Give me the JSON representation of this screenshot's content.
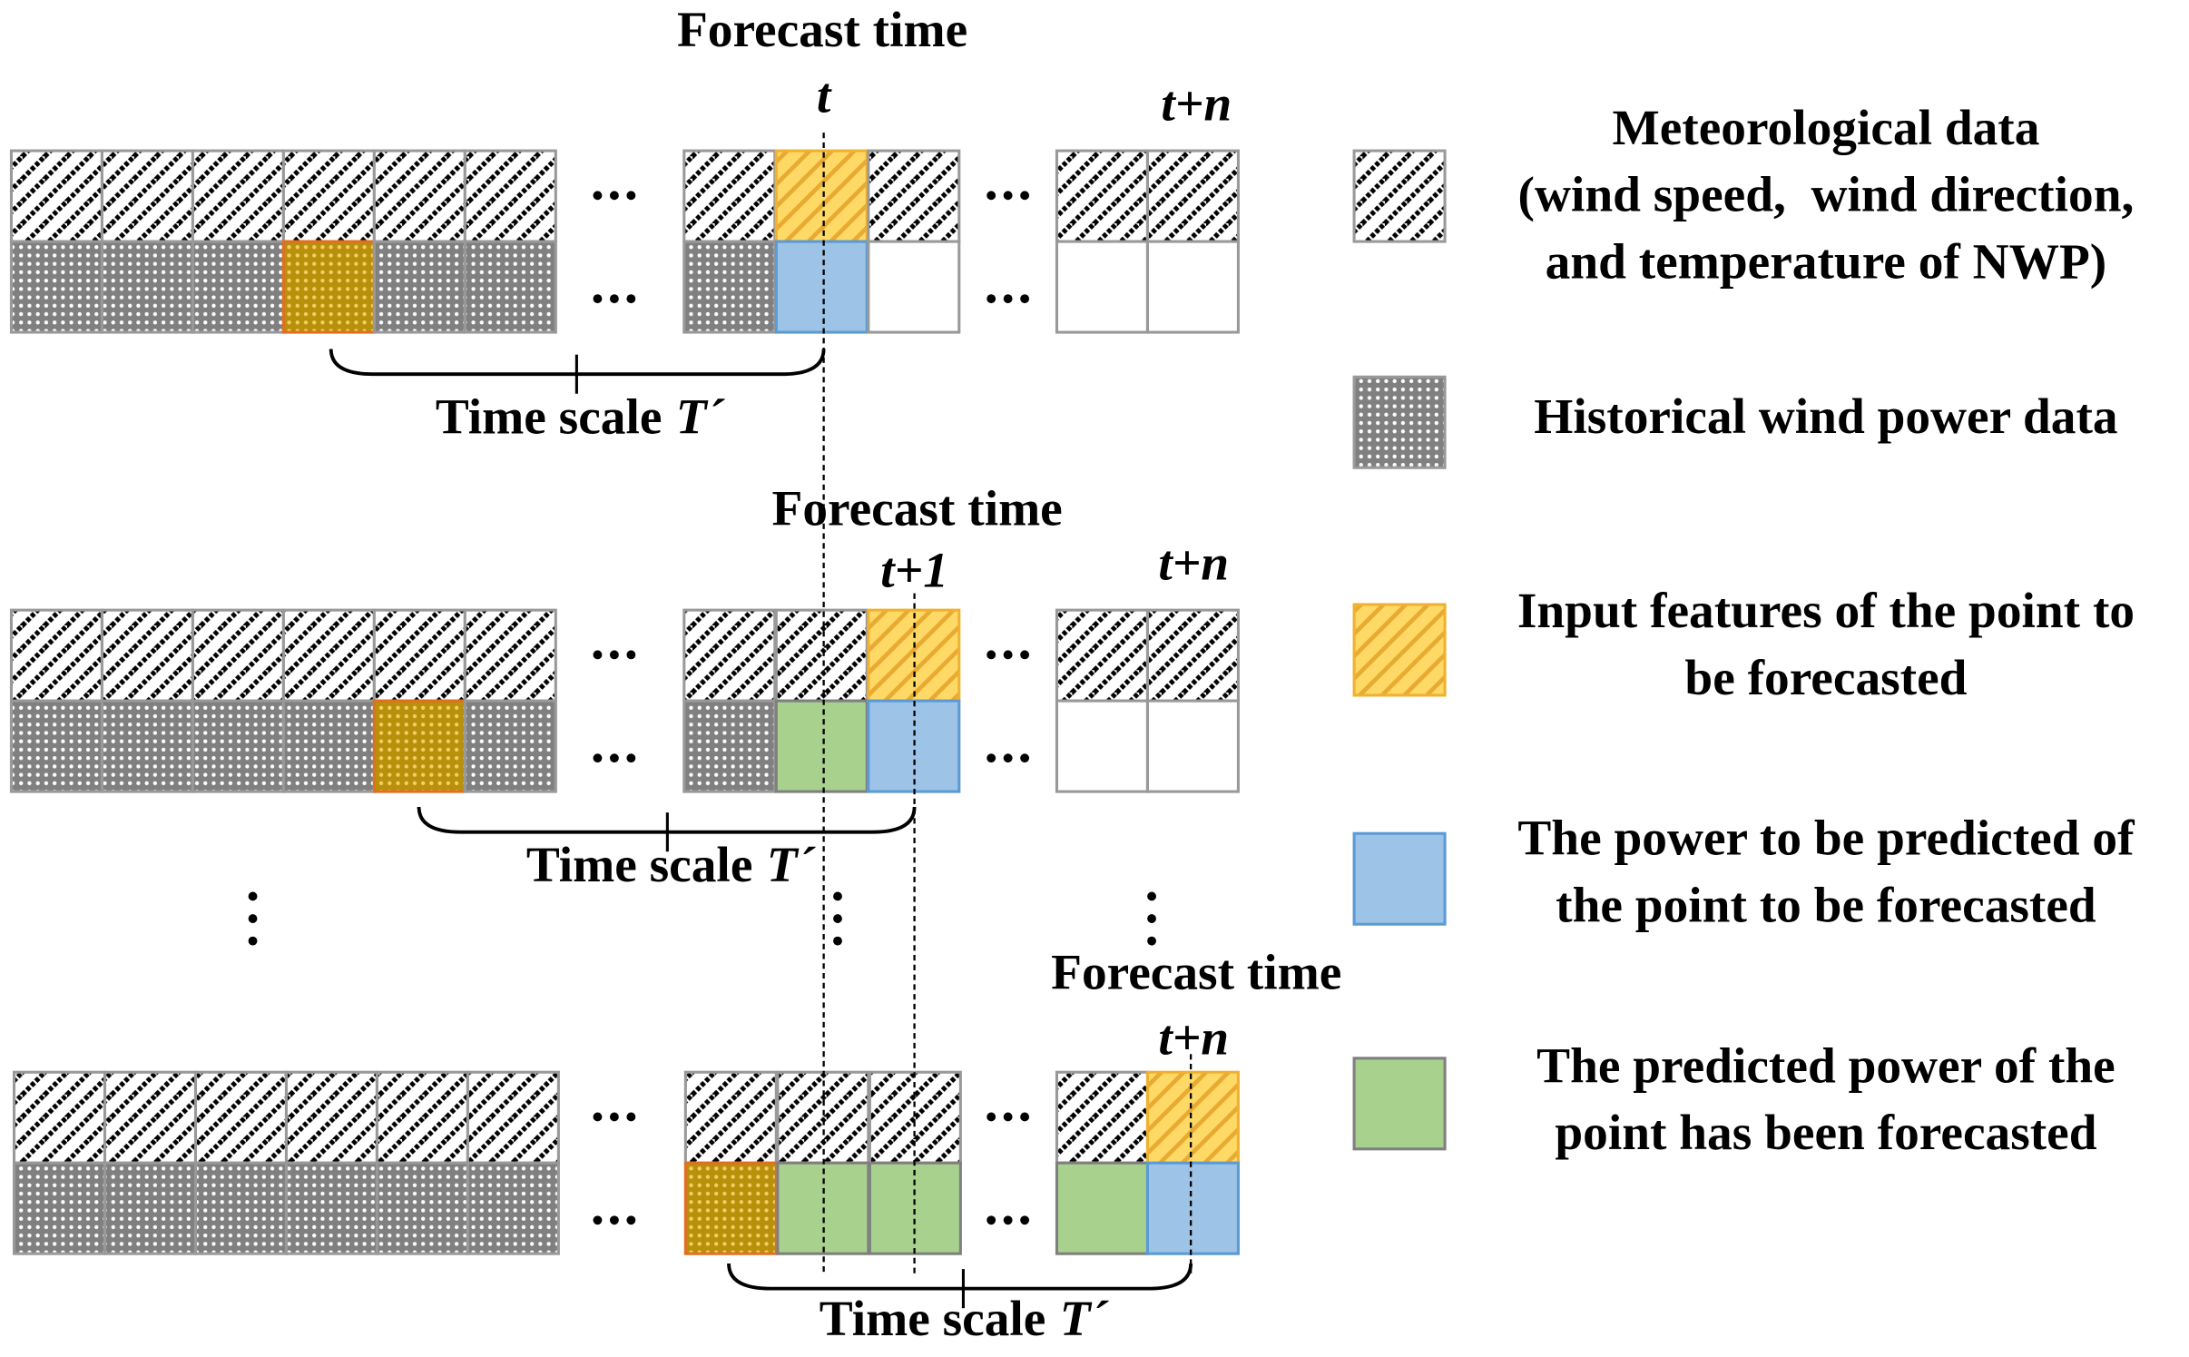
{
  "panels": [
    {
      "forecast_label": "Forecast time",
      "time_label": "t",
      "end_label": "t+n",
      "scale_label": {
        "text": "Time scale",
        "symbol": "T´"
      }
    },
    {
      "forecast_label": "Forecast time",
      "time_label": "t+1",
      "end_label": "t+n",
      "scale_label": {
        "text": "Time scale",
        "symbol": "T´"
      }
    },
    {
      "forecast_label": "Forecast time",
      "time_label": "t+n",
      "scale_label": {
        "text": "Time scale",
        "symbol": "T´"
      }
    }
  ],
  "legend": [
    {
      "lines": [
        "Meteorological data",
        "(wind speed,  wind direction,",
        "and temperature of NWP)"
      ]
    },
    {
      "lines": [
        "Historical wind power data"
      ]
    },
    {
      "lines": [
        "Input features of the point to",
        "be forecasted"
      ]
    },
    {
      "lines": [
        "The power to be predicted of",
        "the point to be forecasted"
      ]
    },
    {
      "lines": [
        "The predicted power of the",
        "point has been forecasted"
      ]
    }
  ]
}
